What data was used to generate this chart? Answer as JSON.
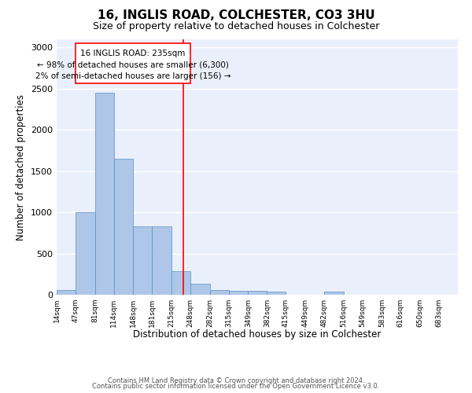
{
  "title": "16, INGLIS ROAD, COLCHESTER, CO3 3HU",
  "subtitle": "Size of property relative to detached houses in Colchester",
  "xlabel": "Distribution of detached houses by size in Colchester",
  "ylabel": "Number of detached properties",
  "footnote1": "Contains HM Land Registry data © Crown copyright and database right 2024.",
  "footnote2": "Contains public sector information licensed under the Open Government Licence v3.0.",
  "bar_edges": [
    14,
    47,
    81,
    114,
    148,
    181,
    215,
    248,
    282,
    315,
    349,
    382,
    415,
    449,
    482,
    516,
    549,
    583,
    616,
    650,
    683
  ],
  "bar_heights": [
    55,
    1000,
    2450,
    1650,
    830,
    830,
    285,
    130,
    55,
    45,
    45,
    40,
    0,
    0,
    35,
    0,
    0,
    0,
    0,
    0,
    0
  ],
  "bar_color": "#aec6e8",
  "bar_edgecolor": "#5a8fc2",
  "vline_x": 235,
  "vline_color": "red",
  "annotation_line1": "16 INGLIS ROAD: 235sqm",
  "annotation_line2": "← 98% of detached houses are smaller (6,300)",
  "annotation_line3": "2% of semi-detached houses are larger (156) →",
  "ylim": [
    0,
    3100
  ],
  "yticks": [
    0,
    500,
    1000,
    1500,
    2000,
    2500,
    3000
  ],
  "bg_color": "#eaf0fb",
  "grid_color": "#ffffff",
  "tick_labels": [
    "14sqm",
    "47sqm",
    "81sqm",
    "114sqm",
    "148sqm",
    "181sqm",
    "215sqm",
    "248sqm",
    "282sqm",
    "315sqm",
    "349sqm",
    "382sqm",
    "415sqm",
    "449sqm",
    "482sqm",
    "516sqm",
    "549sqm",
    "583sqm",
    "616sqm",
    "650sqm",
    "683sqm"
  ],
  "title_fontsize": 11,
  "subtitle_fontsize": 9,
  "ylabel_fontsize": 8.5,
  "xlabel_fontsize": 8.5,
  "tick_fontsize": 6.5,
  "ytick_fontsize": 8,
  "annot_fontsize": 7.5,
  "footnote_fontsize": 6
}
